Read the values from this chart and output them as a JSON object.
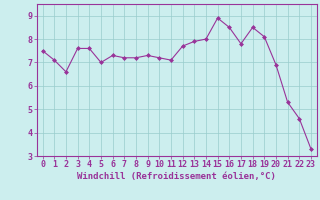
{
  "x": [
    0,
    1,
    2,
    3,
    4,
    5,
    6,
    7,
    8,
    9,
    10,
    11,
    12,
    13,
    14,
    15,
    16,
    17,
    18,
    19,
    20,
    21,
    22,
    23
  ],
  "y": [
    7.5,
    7.1,
    6.6,
    7.6,
    7.6,
    7.0,
    7.3,
    7.2,
    7.2,
    7.3,
    7.2,
    7.1,
    7.7,
    7.9,
    8.0,
    8.9,
    8.5,
    7.8,
    8.5,
    8.1,
    6.9,
    5.3,
    4.6,
    3.3
  ],
  "line_color": "#993399",
  "marker_color": "#993399",
  "bg_color": "#cceeee",
  "grid_color": "#99cccc",
  "xlabel": "Windchill (Refroidissement éolien,°C)",
  "xlabel_color": "#993399",
  "tick_color": "#993399",
  "spine_color": "#993399",
  "ylim": [
    3,
    9.5
  ],
  "xlim": [
    -0.5,
    23.5
  ],
  "yticks": [
    3,
    4,
    5,
    6,
    7,
    8,
    9
  ],
  "xticks": [
    0,
    1,
    2,
    3,
    4,
    5,
    6,
    7,
    8,
    9,
    10,
    11,
    12,
    13,
    14,
    15,
    16,
    17,
    18,
    19,
    20,
    21,
    22,
    23
  ],
  "tick_fontsize": 6.0,
  "xlabel_fontsize": 6.5
}
